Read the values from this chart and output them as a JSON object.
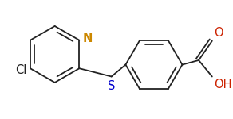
{
  "bg_color": "#ffffff",
  "line_color": "#222222",
  "label_colors": {
    "N": "#cc8800",
    "S": "#0000cc",
    "Cl": "#222222",
    "O": "#cc2200"
  },
  "bond_lw": 1.3,
  "font_size": 10.5,
  "figsize": [
    2.92,
    1.5
  ],
  "dpi": 100,
  "xlim": [
    0,
    292
  ],
  "ylim": [
    0,
    150
  ]
}
